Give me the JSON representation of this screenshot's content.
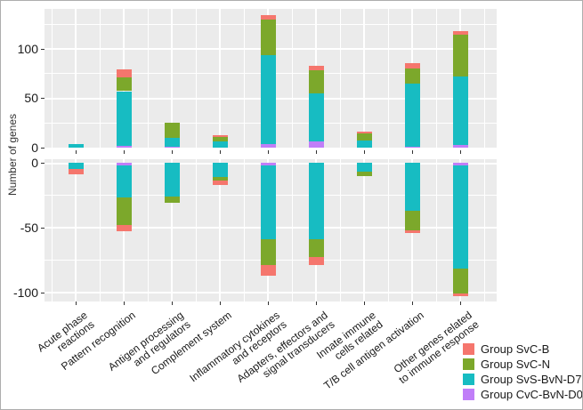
{
  "figure": {
    "background": "#ffffff",
    "border_color": "#adadad",
    "panel_background": "#ebebeb",
    "grid_color": "#ffffff"
  },
  "y_axis": {
    "title": "Number of genes",
    "top_panel_ticks": [
      {
        "label": "100",
        "value": 100
      },
      {
        "label": "50",
        "value": 50
      },
      {
        "label": "0",
        "value": 0
      }
    ],
    "bottom_panel_ticks": [
      {
        "label": "0",
        "value": 0
      },
      {
        "label": "-50",
        "value": -50
      },
      {
        "label": "-100",
        "value": -100
      }
    ]
  },
  "legend": {
    "entries": [
      {
        "label": "Group SvC-B",
        "color": "#F5766D"
      },
      {
        "label": "Group SvC-N",
        "color": "#7CA82B"
      },
      {
        "label": "Group SvS-BvN-D7",
        "color": "#17BCC2"
      },
      {
        "label": "Group CvC-BvN-D0",
        "color": "#C07EF8"
      }
    ]
  },
  "chart_data": {
    "type": "bar",
    "stacked": true,
    "orientation": "vertical",
    "title": "",
    "xlabel": "",
    "ylabel": "Number of genes",
    "legend_position": "bottom-right",
    "grid": true,
    "top_panel_ylim": [
      0,
      140
    ],
    "bottom_panel_ylim": [
      -107,
      0
    ],
    "top_gridlines_major": [
      0,
      50,
      100
    ],
    "top_gridlines_minor": [
      25,
      75,
      125
    ],
    "bottom_gridlines_major": [
      0,
      -50,
      -100
    ],
    "bottom_gridlines_minor": [
      -25,
      -75
    ],
    "categories": [
      "Acute phase\nreactions",
      "Pattern recognition",
      "Antigen processing\nand regulators",
      "Complement system",
      "Inflammatory cytokines\nand receptors",
      "Adapters, effectors and\nsignal transducers",
      "Innate immune\ncells related",
      "T/B cell antigen activation",
      "Other genes related\nto immune response"
    ],
    "stack_order_from_zero": [
      "Group CvC-BvN-D0",
      "Group SvS-BvN-D7",
      "Group SvC-N",
      "Group SvC-B"
    ],
    "series": [
      {
        "name": "Group SvC-B",
        "color": "#F5766D",
        "upregulated": [
          0,
          8,
          0,
          2,
          5,
          5,
          2,
          5,
          4
        ],
        "downregulated": [
          -4,
          -5,
          0,
          -3,
          -8,
          -6,
          0,
          -2,
          -2
        ]
      },
      {
        "name": "Group SvC-N",
        "color": "#7CA82B",
        "upregulated": [
          0,
          14,
          15,
          5,
          36,
          23,
          7,
          15,
          42
        ],
        "downregulated": [
          0,
          -21,
          -5,
          -3,
          -20,
          -14,
          -3,
          -15,
          -19
        ]
      },
      {
        "name": "Group SvS-BvN-D7",
        "color": "#17BCC2",
        "upregulated": [
          4,
          55,
          9,
          6,
          89,
          49,
          7,
          64,
          69
        ],
        "downregulated": [
          -5,
          -25,
          -26,
          -11,
          -57,
          -59,
          -7,
          -37,
          -80
        ]
      },
      {
        "name": "Group CvC-BvN-D0",
        "color": "#C07EF8",
        "upregulated": [
          0,
          2,
          1,
          0,
          4,
          6,
          0,
          1,
          3
        ],
        "downregulated": [
          0,
          -2,
          0,
          0,
          -2,
          0,
          0,
          0,
          -2
        ]
      }
    ]
  }
}
